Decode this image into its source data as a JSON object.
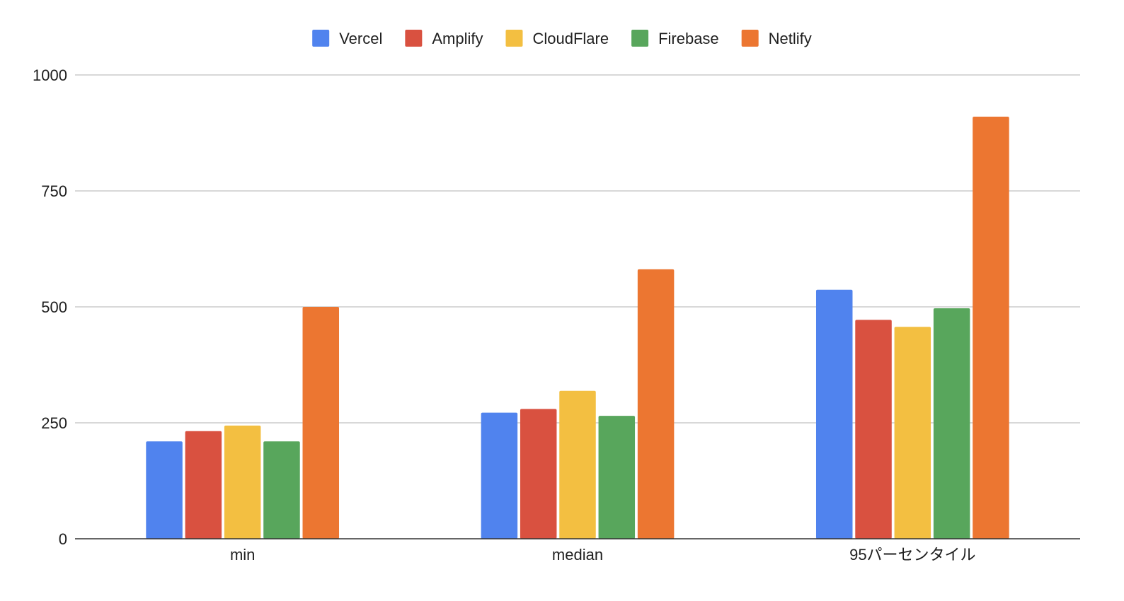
{
  "chart_data": {
    "type": "bar",
    "title": "",
    "xlabel": "",
    "ylabel": "",
    "categories": [
      "min",
      "median",
      "95パーセンタイル"
    ],
    "series": [
      {
        "name": "Vercel",
        "color": "#5083EE",
        "values": [
          210,
          272,
          537
        ]
      },
      {
        "name": "Amplify",
        "color": "#D95140",
        "values": [
          232,
          280,
          472
        ]
      },
      {
        "name": "CloudFlare",
        "color": "#F3BF41",
        "values": [
          244,
          319,
          457
        ]
      },
      {
        "name": "Firebase",
        "color": "#58A65C",
        "values": [
          210,
          265,
          497
        ]
      },
      {
        "name": "Netlify",
        "color": "#EC7631",
        "values": [
          500,
          581,
          910
        ]
      }
    ],
    "ylim": [
      0,
      1000
    ],
    "yticks": [
      "0",
      "250",
      "500",
      "750",
      "1000"
    ],
    "grid": true,
    "legend_position": "top"
  }
}
